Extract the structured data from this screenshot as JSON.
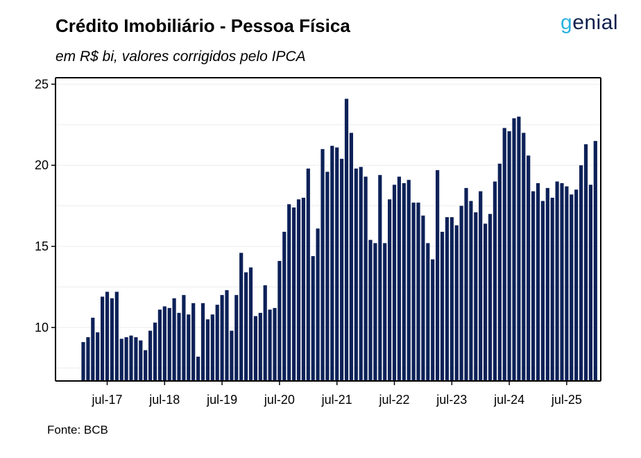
{
  "header": {
    "title": "Crédito Imobiliário - Pessoa Física",
    "subtitle": "em R$ bi, valores corrigidos pelo IPCA",
    "logo_text": "genial"
  },
  "footer": {
    "source": "Fonte: BCB"
  },
  "colors": {
    "bar": "#0d2158",
    "grid": "#ececec",
    "logo_accent": "#2bb3e0"
  },
  "chart_data": {
    "type": "bar",
    "title": "Crédito Imobiliário - Pessoa Física",
    "subtitle": "em R$ bi, valores corrigidos pelo IPCA",
    "xlabel": "",
    "ylabel": "",
    "ylim": [
      6.7,
      25.4
    ],
    "yticks": [
      10,
      15,
      20,
      25
    ],
    "grid": true,
    "xtick_labels": [
      "jul-17",
      "jul-18",
      "jul-19",
      "jul-20",
      "jul-21",
      "jul-22",
      "jul-23",
      "jul-24",
      "jul-25"
    ],
    "xtick_index": [
      5,
      17,
      29,
      41,
      53,
      65,
      77,
      89,
      101
    ],
    "series": [
      {
        "values": [
          9.1,
          9.4,
          10.6,
          9.7,
          11.9,
          12.2,
          11.8,
          12.2,
          9.3,
          9.4,
          9.5,
          9.4,
          9.2,
          8.6,
          9.8,
          10.3,
          11.1,
          11.3,
          11.2,
          11.8,
          10.9,
          12.0,
          10.8,
          11.5,
          8.2,
          11.5,
          10.5,
          10.8,
          11.4,
          12.0,
          12.3,
          9.8,
          12.0,
          14.6,
          13.4,
          13.7,
          10.7,
          10.9,
          12.6,
          11.1,
          11.2,
          14.1,
          15.9,
          17.6,
          17.4,
          17.9,
          18.0,
          19.8,
          14.4,
          16.1,
          21.0,
          19.6,
          21.2,
          21.1,
          20.4,
          24.1,
          22.0,
          19.8,
          19.9,
          19.3,
          15.4,
          15.2,
          19.4,
          15.2,
          17.9,
          18.8,
          19.3,
          18.9,
          19.1,
          17.7,
          17.7,
          16.9,
          15.2,
          14.2,
          19.7,
          15.9,
          16.8,
          16.8,
          16.3,
          17.5,
          18.6,
          17.8,
          17.1,
          18.4,
          16.4,
          17.0,
          19.0,
          20.1,
          22.3,
          22.1,
          22.9,
          23.0,
          22.0,
          20.6,
          18.4,
          18.9,
          17.8,
          18.6,
          18.0,
          19.0,
          18.9,
          18.7,
          18.2,
          18.5,
          20.0,
          21.3,
          18.8,
          21.5
        ]
      }
    ]
  }
}
